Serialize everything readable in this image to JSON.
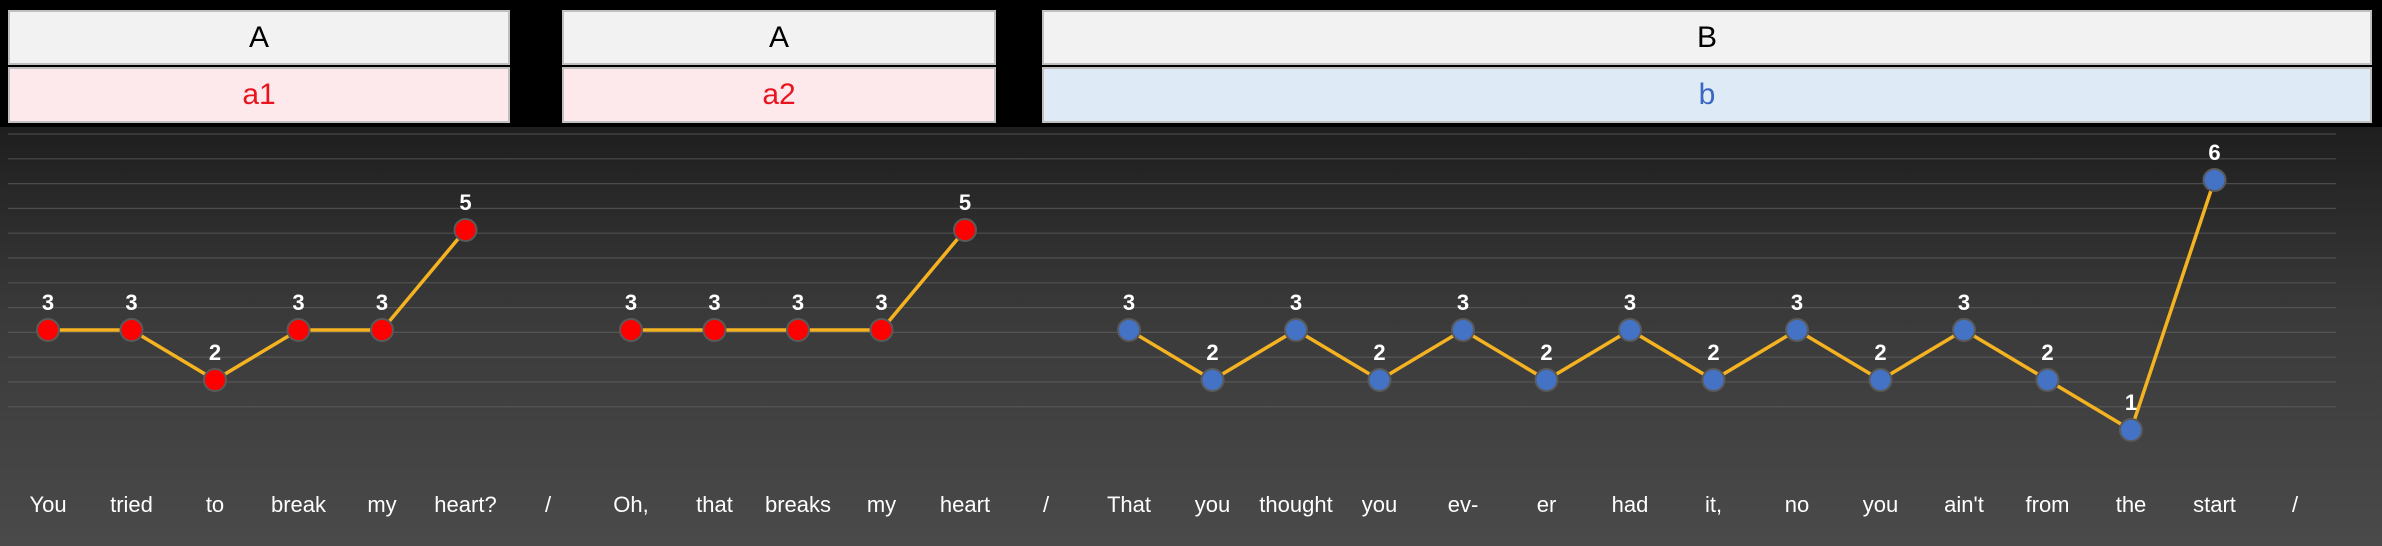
{
  "sections": [
    {
      "label": "A",
      "sub": "a1",
      "color": "#ff0000"
    },
    {
      "label": "A",
      "sub": "a2",
      "color": "#ff0000"
    },
    {
      "label": "B",
      "sub": "b",
      "color": "#4472c4"
    }
  ],
  "chart_data": {
    "type": "line",
    "ylim": [
      0,
      7
    ],
    "line_color": "#f5b321",
    "grid": true,
    "groups": [
      {
        "section": 0,
        "words": [
          "You",
          "tried",
          "to",
          "break",
          "my",
          "heart?"
        ],
        "values": [
          3,
          3,
          2,
          3,
          3,
          5
        ]
      },
      {
        "section": 1,
        "words": [
          "Oh,",
          "that",
          "breaks",
          "my",
          "heart"
        ],
        "values": [
          3,
          3,
          3,
          3,
          5
        ]
      },
      {
        "section": 2,
        "words": [
          "That",
          "you",
          "thought",
          "you",
          "ev-",
          "er",
          "had",
          "it,",
          "no",
          "you",
          "ain't",
          "from",
          "the",
          "start"
        ],
        "values": [
          3,
          2,
          3,
          2,
          3,
          2,
          3,
          2,
          3,
          2,
          3,
          2,
          1,
          6
        ]
      }
    ],
    "separator": "/"
  }
}
